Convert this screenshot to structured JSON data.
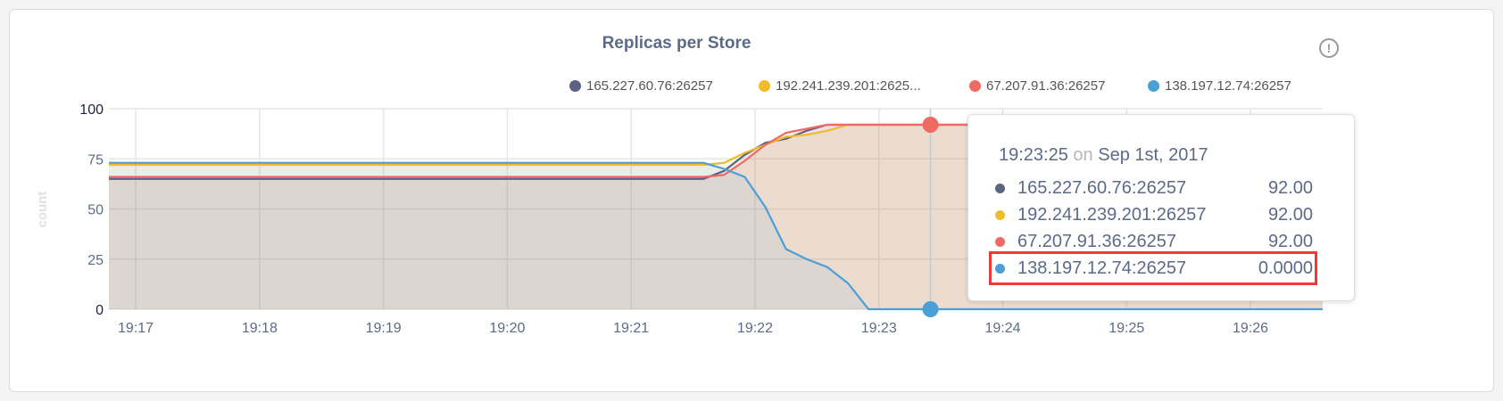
{
  "header": {
    "title": "Replicas per Store",
    "info_icon": "info-circle-icon",
    "info_glyph": "!"
  },
  "chart_data": {
    "type": "area",
    "title": "Replicas per Store",
    "xlabel": "",
    "ylabel": "count",
    "ylim": [
      0,
      100
    ],
    "xlim": [
      "19:16:47",
      "19:26:35"
    ],
    "yticks": [
      "0",
      "25",
      "50",
      "75",
      "100"
    ],
    "xticks": [
      "19:17",
      "19:18",
      "19:19",
      "19:20",
      "19:21",
      "19:22",
      "19:23",
      "19:24",
      "19:25",
      "19:26"
    ],
    "grid": true,
    "legend_position": "top-right",
    "x": [
      "19:16:47",
      "19:21:35",
      "19:21:45",
      "19:21:55",
      "19:22:05",
      "19:22:15",
      "19:22:25",
      "19:22:35",
      "19:22:45",
      "19:22:55",
      "19:23:25",
      "19:26:35"
    ],
    "series": [
      {
        "name": "165.227.60.76:26257",
        "color": "#5a6482",
        "values": [
          65,
          65,
          69,
          77,
          83,
          85,
          89,
          92,
          92,
          92,
          92,
          92
        ]
      },
      {
        "name": "192.241.239.201:26257",
        "legend_label": "192.241.239.201:2625...",
        "color": "#f0bc2c",
        "values": [
          72,
          72,
          73,
          78,
          82,
          86,
          87,
          89,
          92,
          92,
          92,
          92
        ]
      },
      {
        "name": "67.207.91.36:26257",
        "color": "#f06a64",
        "values": [
          66,
          66,
          67,
          74,
          82,
          88,
          90,
          92,
          92,
          92,
          92,
          92
        ]
      },
      {
        "name": "138.197.12.74:26257",
        "color": "#4a9fd5",
        "values": [
          73,
          73,
          70,
          66,
          51,
          30,
          25,
          21,
          13,
          0,
          0,
          0
        ]
      }
    ],
    "hover": {
      "x": "19:23:25"
    }
  },
  "tooltip": {
    "time": "19:23:25",
    "on": "on",
    "date": "Sep 1st, 2017",
    "rows": [
      {
        "name": "165.227.60.76:26257",
        "value": "92.00",
        "color": "#5a6482"
      },
      {
        "name": "192.241.239.201:26257",
        "value": "92.00",
        "color": "#f0bc2c"
      },
      {
        "name": "67.207.91.36:26257",
        "value": "92.00",
        "color": "#f06a64"
      },
      {
        "name": "138.197.12.74:26257",
        "value": "0.0000",
        "color": "#4a9fd5",
        "highlighted": true
      }
    ]
  }
}
